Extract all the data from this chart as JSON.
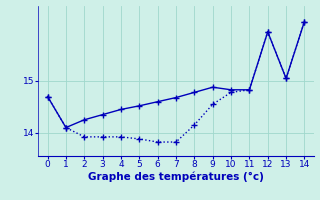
{
  "xlabel": "Graphe des températures (°c)",
  "background_color": "#cff0e8",
  "line1": {
    "x": [
      0,
      1,
      2,
      3,
      4,
      5,
      6,
      7,
      8,
      9,
      10,
      11,
      12,
      13,
      14
    ],
    "y": [
      14.7,
      14.1,
      14.25,
      14.35,
      14.45,
      14.52,
      14.6,
      14.68,
      14.78,
      14.88,
      14.83,
      14.83,
      15.95,
      15.05,
      16.15
    ],
    "color": "#0000bb",
    "linestyle": "-",
    "linewidth": 1.0,
    "marker": "+",
    "markersize": 4
  },
  "line2": {
    "x": [
      0,
      1,
      2,
      3,
      4,
      5,
      6,
      7,
      8,
      9,
      10,
      11,
      12,
      13,
      14
    ],
    "y": [
      14.7,
      14.1,
      13.92,
      13.92,
      13.92,
      13.88,
      13.82,
      13.82,
      14.15,
      14.55,
      14.78,
      14.83,
      15.95,
      15.05,
      16.15
    ],
    "color": "#0000bb",
    "linestyle": ":",
    "linewidth": 1.0,
    "marker": "+",
    "markersize": 4
  },
  "ylim": [
    13.55,
    16.45
  ],
  "xlim": [
    -0.5,
    14.5
  ],
  "yticks": [
    14,
    15
  ],
  "xticks": [
    0,
    1,
    2,
    3,
    4,
    5,
    6,
    7,
    8,
    9,
    10,
    11,
    12,
    13,
    14
  ],
  "grid_color": "#a0d8cc",
  "xlabel_color": "#0000bb",
  "tick_color": "#0000bb",
  "tick_fontsize": 6.5,
  "xlabel_fontsize": 7.5
}
